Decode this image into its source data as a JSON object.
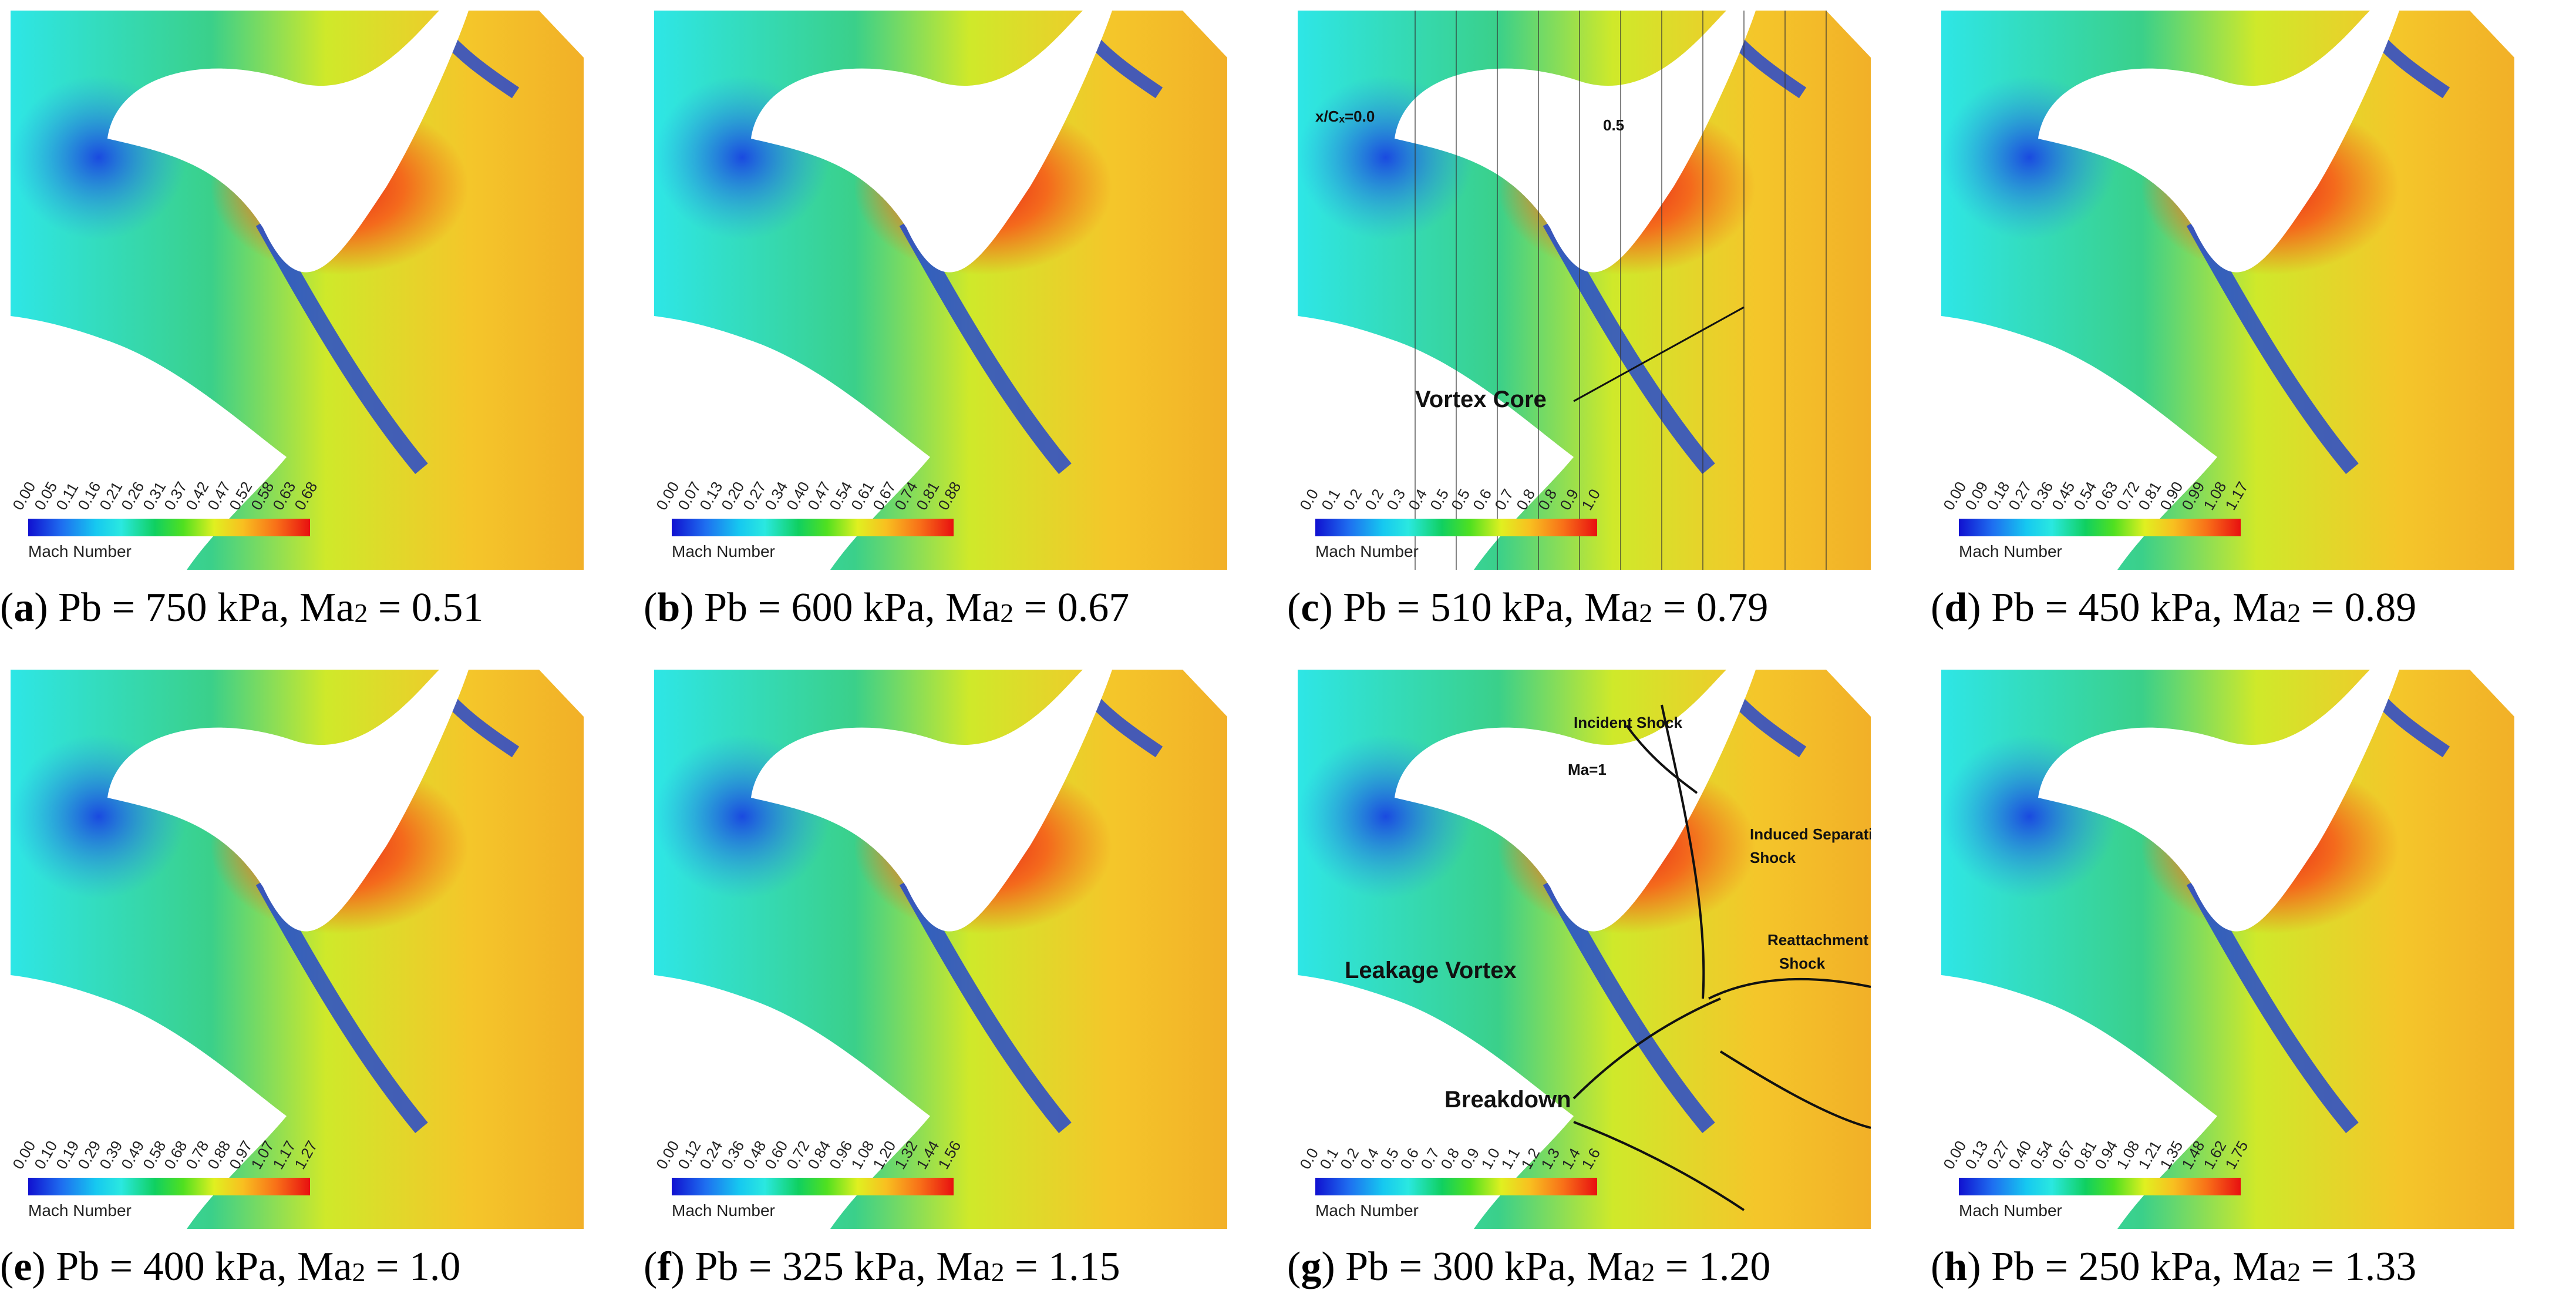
{
  "legend_title": "Mach Number",
  "panels": [
    {
      "letter": "a",
      "text": " Pb = 750 kPa, Ma",
      "sub": "2",
      "value": " = 0.51",
      "ticks": [
        "0.00",
        "0.05",
        "0.11",
        "0.16",
        "0.21",
        "0.26",
        "0.31",
        "0.37",
        "0.42",
        "0.47",
        "0.52",
        "0.58",
        "0.63",
        "0.68"
      ]
    },
    {
      "letter": "b",
      "text": " Pb = 600 kPa, Ma",
      "sub": "2",
      "value": " = 0.67",
      "ticks": [
        "0.00",
        "0.07",
        "0.13",
        "0.20",
        "0.27",
        "0.34",
        "0.40",
        "0.47",
        "0.54",
        "0.61",
        "0.67",
        "0.74",
        "0.81",
        "0.88"
      ]
    },
    {
      "letter": "c",
      "text": " Pb = 510 kPa, Ma",
      "sub": "2",
      "value": " = 0.79",
      "ticks": [
        "0.0",
        "0.1",
        "0.2",
        "0.2",
        "0.3",
        "0.4",
        "0.5",
        "0.5",
        "0.6",
        "0.7",
        "0.8",
        "0.8",
        "0.9",
        "1.0"
      ]
    },
    {
      "letter": "d",
      "text": " Pb = 450 kPa, Ma",
      "sub": "2",
      "value": " = 0.89",
      "ticks": [
        "0.00",
        "0.09",
        "0.18",
        "0.27",
        "0.36",
        "0.45",
        "0.54",
        "0.63",
        "0.72",
        "0.81",
        "0.90",
        "0.99",
        "1.08",
        "1.17"
      ]
    },
    {
      "letter": "e",
      "text": " Pb = 400 kPa, Ma",
      "sub": "2",
      "value": " = 1.0",
      "ticks": [
        "0.00",
        "0.10",
        "0.19",
        "0.29",
        "0.39",
        "0.49",
        "0.58",
        "0.68",
        "0.78",
        "0.88",
        "0.97",
        "1.07",
        "1.17",
        "1.27"
      ]
    },
    {
      "letter": "f",
      "text": " Pb = 325 kPa, Ma",
      "sub": "2",
      "value": " = 1.15",
      "ticks": [
        "0.00",
        "0.12",
        "0.24",
        "0.36",
        "0.48",
        "0.60",
        "0.72",
        "0.84",
        "0.96",
        "1.08",
        "1.20",
        "1.32",
        "1.44",
        "1.56"
      ]
    },
    {
      "letter": "g",
      "text": " Pb = 300 kPa, Ma",
      "sub": "2",
      "value": " = 1.20",
      "ticks": [
        "0.0",
        "0.1",
        "0.2",
        "0.4",
        "0.5",
        "0.6",
        "0.7",
        "0.8",
        "0.9",
        "1.0",
        "1.1",
        "1.2",
        "1.3",
        "1.4",
        "1.6"
      ]
    },
    {
      "letter": "h",
      "text": " Pb = 250 kPa, Ma",
      "sub": "2",
      "value": " = 1.33",
      "ticks": [
        "0.00",
        "0.13",
        "0.27",
        "0.40",
        "0.54",
        "0.67",
        "0.81",
        "0.94",
        "1.08",
        "1.21",
        "1.35",
        "1.48",
        "1.62",
        "1.75"
      ]
    }
  ],
  "annotations": {
    "c_xc0": "x/Cₓ=0.0",
    "c_half": "0.5",
    "c_vortex_core": "Vortex Core",
    "g_incident": "Incident Shock",
    "g_ma1": "Ma=1",
    "g_induced1": "Induced Separation",
    "g_induced2": "Shock",
    "g_reattach1": "Reattachment",
    "g_reattach2": "Shock",
    "g_leakage": "Leakage Vortex",
    "g_breakdown": "Breakdown"
  }
}
